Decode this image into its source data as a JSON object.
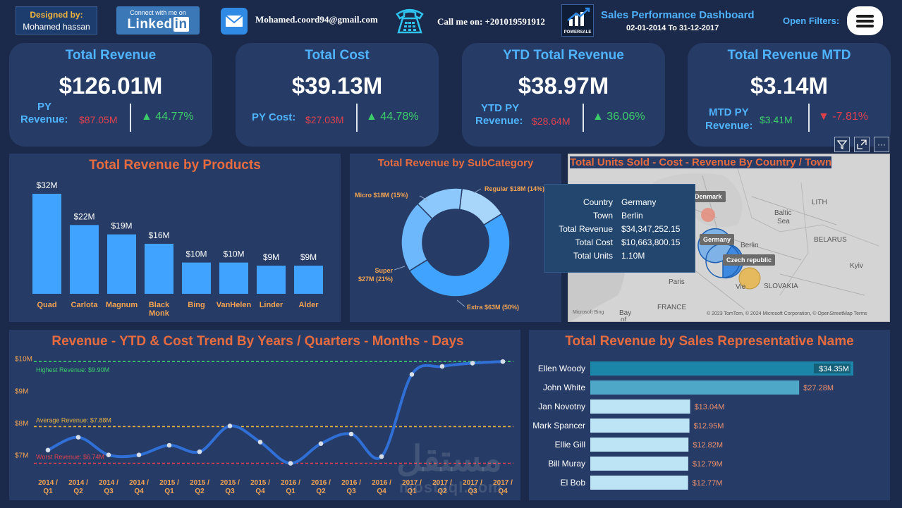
{
  "header": {
    "designed_by_label": "Designed by:",
    "designer_name": "Mohamed hassan",
    "linkedin_line1": "Connect with me on",
    "linkedin_line2": "Linked",
    "linkedin_in": "in",
    "email": "Mohamed.coord94@gmail.com",
    "call": "Call me on: +201019591912",
    "brand_logo_label": "POWERSALE",
    "dashboard_title": "Sales Performance Dashboard",
    "date_range": "02-01-2014 To 31-12-2017",
    "open_filters": "Open Filters:",
    "accent": "#4fb3ff"
  },
  "kpis": [
    {
      "title": "Total Revenue",
      "value": "$126.01M",
      "prev_label_1": "PY",
      "prev_label_2": "Revenue:",
      "prev_value": "$87.05M",
      "delta": "44.77%",
      "direction": "up"
    },
    {
      "title": "Total Cost",
      "value": "$39.13M",
      "prev_label_1": "PY Cost:",
      "prev_label_2": "",
      "prev_value": "$27.03M",
      "delta": "44.78%",
      "direction": "up"
    },
    {
      "title": "YTD Total Revenue",
      "value": "$38.97M",
      "prev_label_1": "YTD PY",
      "prev_label_2": "Revenue:",
      "prev_value": "$28.64M",
      "delta": "36.06%",
      "direction": "up"
    },
    {
      "title": "Total Revenue MTD",
      "value": "$3.14M",
      "prev_label_1": "MTD PY",
      "prev_label_2": "Revenue:",
      "prev_value": "$3.41M",
      "delta": "-7.81%",
      "direction": "down"
    }
  ],
  "visual_icons": {
    "filter": "filter-icon",
    "focus": "focus-mode-icon",
    "more": "more-options-icon",
    "more_glyph": "···"
  },
  "map": {
    "title": "Total Units Sold - Cost - Revenue By Country / Town",
    "tooltip": [
      {
        "key": "Country",
        "value": "Germany"
      },
      {
        "key": "Town",
        "value": "Berlin"
      },
      {
        "key": "Total Revenue",
        "value": "$34,347,252.15"
      },
      {
        "key": "Total Cost",
        "value": "$10,663,800.15"
      },
      {
        "key": "Total Units",
        "value": "1.10M"
      }
    ],
    "tags": {
      "denmark": "Denmark",
      "germany": "Germany",
      "czech": "Czech republic"
    },
    "place_labels": {
      "berlin": "Berlin",
      "baltic": "Baltic",
      "sea": "Sea",
      "belarus": "BELARUS",
      "kyiv": "Kyiv",
      "paris": "Paris",
      "france": "FRANCE",
      "slovakia": "SLOVAKIA",
      "vienna": "Vie",
      "bay": "Bay",
      "of": "of",
      "lith": "LITH"
    },
    "bing": "Microsoft Bing",
    "attribution": "© 2023 TomTom, © 2024 Microsoft Corporation, © OpenStreetMap  Terms"
  },
  "watermark": {
    "arabic": "مستقل",
    "latin": "mostaql.com"
  },
  "chart_data": [
    {
      "type": "bar",
      "title": "Total Revenue by Products",
      "categories": [
        "Quad",
        "Carlota",
        "Magnum",
        "Black Monk",
        "Bing",
        "VanHelen",
        "Linder",
        "Alder"
      ],
      "category_lines": [
        [
          "Quad"
        ],
        [
          "Carlota"
        ],
        [
          "Magnum"
        ],
        [
          "Black",
          "Monk"
        ],
        [
          "Bing"
        ],
        [
          "VanHelen"
        ],
        [
          "Linder"
        ],
        [
          "Alder"
        ]
      ],
      "values": [
        32,
        22,
        19,
        16,
        10,
        10,
        9,
        9
      ],
      "data_labels": [
        "$32M",
        "$22M",
        "$19M",
        "$16M",
        "$10M",
        "$10M",
        "$9M",
        "$9M"
      ],
      "ylim": [
        0,
        32
      ],
      "color": "#3fa3ff"
    },
    {
      "type": "pie",
      "title": "Total Revenue by SubCategory",
      "donut": true,
      "slices": [
        {
          "label": "Regular",
          "value": 18,
          "percent": 14,
          "data_label": "Regular $18M (14%)",
          "color": "#a8d6fb"
        },
        {
          "label": "Extra",
          "value": 63,
          "percent": 50,
          "data_label": "Extra $63M (50%)",
          "color": "#3fa3ff"
        },
        {
          "label": "Super",
          "value": 27,
          "percent": 21,
          "data_label_lines": [
            "Super",
            "$27M (21%)"
          ],
          "color": "#6db8fc"
        },
        {
          "label": "Micro",
          "value": 18,
          "percent": 15,
          "data_label": "Micro $18M (15%)",
          "color": "#8cc8fb"
        }
      ]
    },
    {
      "type": "line",
      "title": "Revenue - YTD & Cost Trend By Years / Quarters - Months - Days",
      "x_lines": [
        [
          "2014 /",
          "Q1"
        ],
        [
          "2014 /",
          "Q2"
        ],
        [
          "2014 /",
          "Q3"
        ],
        [
          "2014 /",
          "Q4"
        ],
        [
          "2015 /",
          "Q1"
        ],
        [
          "2015 /",
          "Q2"
        ],
        [
          "2015 /",
          "Q3"
        ],
        [
          "2015 /",
          "Q4"
        ],
        [
          "2016 /",
          "Q1"
        ],
        [
          "2016 /",
          "Q2"
        ],
        [
          "2016 /",
          "Q3"
        ],
        [
          "2016 /",
          "Q4"
        ],
        [
          "2017 /",
          "Q1"
        ],
        [
          "2017 /",
          "Q2"
        ],
        [
          "2017 /",
          "Q3"
        ],
        [
          "2017 /",
          "Q4"
        ]
      ],
      "x": [
        "2014 / Q1",
        "2014 / Q2",
        "2014 / Q3",
        "2014 / Q4",
        "2015 / Q1",
        "2015 / Q2",
        "2015 / Q3",
        "2015 / Q4",
        "2016 / Q1",
        "2016 / Q2",
        "2016 / Q3",
        "2016 / Q4",
        "2017 / Q1",
        "2017 / Q2",
        "2017 / Q3",
        "2017 / Q4"
      ],
      "series": [
        {
          "values": [
            7.15,
            7.55,
            7.0,
            7.0,
            7.3,
            7.1,
            7.9,
            7.4,
            6.74,
            7.35,
            7.65,
            6.95,
            9.5,
            9.75,
            9.85,
            9.9
          ],
          "color": "#2f6fd6"
        }
      ],
      "ylim": [
        6.6,
        10.1
      ],
      "yticks": [
        {
          "v": 10,
          "label": "$10M"
        },
        {
          "v": 9,
          "label": "$9M"
        },
        {
          "v": 8,
          "label": "$8M"
        },
        {
          "v": 7,
          "label": "$7M"
        }
      ],
      "reference_lines": [
        {
          "value": 9.9,
          "label": "Highest Revenue: $9.90M",
          "color": "#3ccd6a"
        },
        {
          "value": 7.88,
          "label": "Average Revenue: $7.88M",
          "color": "#e6b040"
        },
        {
          "value": 6.74,
          "label": "Worst Revenue: $6.74M",
          "color": "#e0404e"
        }
      ]
    },
    {
      "type": "bar",
      "orientation": "horizontal",
      "title": "Total Revenue by Sales Representative Name",
      "categories": [
        "Ellen Woody",
        "John White",
        "Jan Novotny",
        "Mark Spancer",
        "Ellie Gill",
        "Bill Muray",
        "El Bob"
      ],
      "values": [
        34.35,
        27.28,
        13.04,
        12.95,
        12.82,
        12.79,
        12.77
      ],
      "data_labels": [
        "$34.35M",
        "$27.28M",
        "$13.04M",
        "$12.95M",
        "$12.82M",
        "$12.79M",
        "$12.77M"
      ],
      "colors": [
        "#1b86a8",
        "#4fa7c7",
        "#bde4f5",
        "#bde4f5",
        "#bde4f5",
        "#bde4f5",
        "#bde4f5"
      ],
      "xlim": [
        0,
        35
      ]
    }
  ]
}
